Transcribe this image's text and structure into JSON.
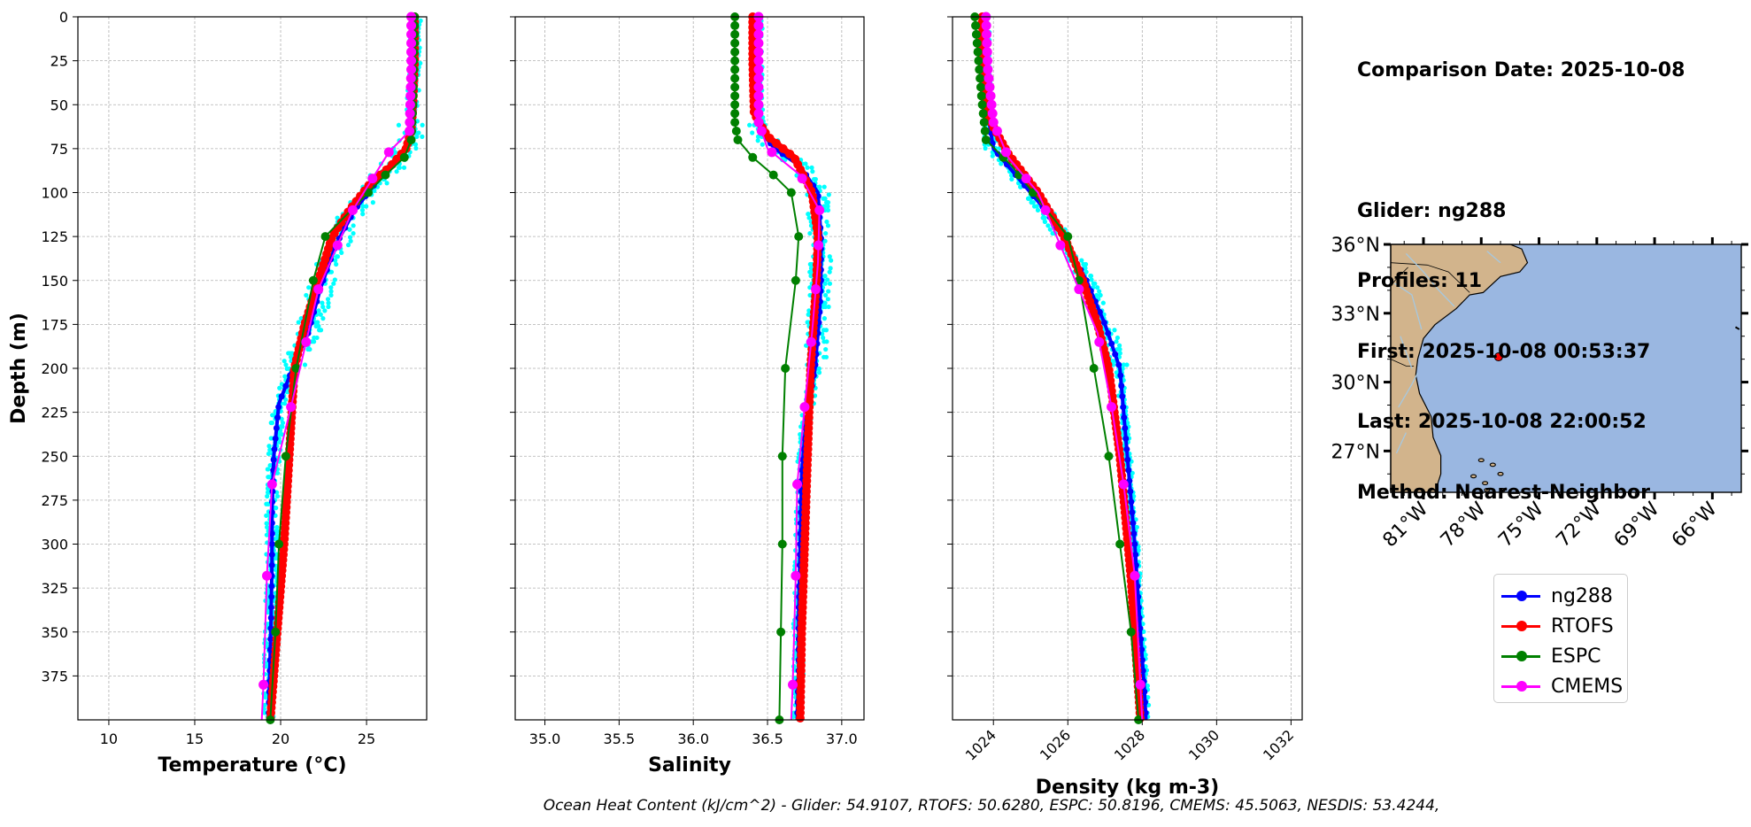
{
  "info": {
    "comparison_date": "Comparison Date: 2025-10-08",
    "glider": "Glider: ng288",
    "profiles": "Profiles: 11",
    "first": "First: 2025-10-08 00:53:37",
    "last": "Last: 2025-10-08 22:00:52",
    "method": "Method: Nearest-Neighbor"
  },
  "footer": "Ocean Heat Content (kJ/cm^2) - Glider: 54.9107,  RTOFS: 50.6280,  ESPC: 50.8196,  CMEMS: 45.5063,  NESDIS: 53.4244,",
  "legend": [
    {
      "label": "ng288",
      "color": "#0000ff"
    },
    {
      "label": "RTOFS",
      "color": "#ff0000"
    },
    {
      "label": "ESPC",
      "color": "#008000"
    },
    {
      "label": "CMEMS",
      "color": "#ff00ff"
    }
  ],
  "colors": {
    "glider_profiles": "#00ffff",
    "land": "#d2b48c",
    "ocean": "#9ab7e1"
  },
  "chart_data": [
    {
      "type": "line",
      "xlabel": "Temperature (°C)",
      "ylabel": "Depth (m)",
      "xlim": [
        8.2,
        28.5
      ],
      "ylim": [
        400,
        0
      ],
      "xticks": [
        10,
        15,
        20,
        25
      ],
      "yticks": [
        0,
        25,
        50,
        75,
        100,
        125,
        150,
        175,
        200,
        225,
        250,
        275,
        300,
        325,
        350,
        375
      ],
      "grid": true,
      "series": [
        {
          "name": "ng288",
          "color": "#0000ff",
          "x": [
            27.8,
            27.8,
            27.7,
            27.6,
            27.2,
            26.5,
            25.5,
            24.3,
            23.2,
            22.3,
            21.6,
            20.7,
            19.9,
            19.6,
            19.5,
            19.5,
            19.45,
            19.4,
            19.35,
            19.3
          ],
          "y": [
            0,
            25,
            50,
            65,
            75,
            85,
            95,
            110,
            130,
            155,
            180,
            200,
            220,
            250,
            280,
            310,
            340,
            360,
            380,
            400
          ]
        },
        {
          "name": "RTOFS",
          "color": "#ff0000",
          "x": [
            27.8,
            27.8,
            27.7,
            27.6,
            27.3,
            26.4,
            25.2,
            24.0,
            23.0,
            22.2,
            21.4,
            20.8,
            20.5,
            20.2,
            20.0,
            19.8,
            19.6,
            19.4
          ],
          "y": [
            0,
            25,
            50,
            65,
            75,
            85,
            95,
            110,
            125,
            150,
            175,
            200,
            250,
            300,
            325,
            350,
            375,
            400
          ]
        },
        {
          "name": "ESPC",
          "color": "#008000",
          "x": [
            27.8,
            27.7,
            27.6,
            27.2,
            26.1,
            22.6,
            21.9,
            20.9,
            20.3,
            19.9,
            19.7,
            19.4
          ],
          "y": [
            0,
            50,
            70,
            80,
            90,
            125,
            150,
            200,
            250,
            300,
            350,
            400
          ]
        },
        {
          "name": "CMEMS",
          "color": "#ff00ff",
          "x": [
            27.6,
            27.6,
            27.5,
            26.3,
            24.2,
            22.2,
            20.6,
            19.5,
            19.2,
            19.0,
            18.9
          ],
          "y": [
            0,
            30,
            65,
            77,
            110,
            155,
            222,
            266,
            318,
            380,
            400
          ]
        }
      ]
    },
    {
      "type": "line",
      "xlabel": "Salinity",
      "xlim": [
        34.8,
        37.15
      ],
      "ylim": [
        400,
        0
      ],
      "xticks": [
        35.0,
        35.5,
        36.0,
        36.5,
        37.0
      ],
      "grid": true,
      "series": [
        {
          "name": "ng288",
          "color": "#0000ff",
          "x": [
            36.43,
            36.43,
            36.43,
            36.45,
            36.55,
            36.72,
            36.84,
            36.86,
            36.86,
            36.85,
            36.82,
            36.76,
            36.73,
            36.72,
            36.71,
            36.71,
            36.7
          ],
          "y": [
            0,
            25,
            50,
            65,
            75,
            85,
            100,
            125,
            150,
            170,
            200,
            230,
            260,
            300,
            340,
            370,
            400
          ]
        },
        {
          "name": "RTOFS",
          "color": "#ff0000",
          "x": [
            36.4,
            36.4,
            36.41,
            36.5,
            36.68,
            36.8,
            36.84,
            36.83,
            36.81,
            36.79,
            36.77,
            36.75,
            36.73,
            36.72
          ],
          "y": [
            0,
            25,
            55,
            68,
            80,
            100,
            125,
            150,
            175,
            200,
            250,
            300,
            350,
            400
          ]
        },
        {
          "name": "ESPC",
          "color": "#008000",
          "x": [
            36.28,
            36.28,
            36.28,
            36.3,
            36.4,
            36.54,
            36.66,
            36.71,
            36.69,
            36.62,
            36.6,
            36.6,
            36.59,
            36.58
          ],
          "y": [
            0,
            25,
            60,
            70,
            80,
            90,
            100,
            125,
            150,
            200,
            250,
            300,
            350,
            400
          ]
        },
        {
          "name": "CMEMS",
          "color": "#ff00ff",
          "x": [
            36.44,
            36.44,
            36.44,
            36.5,
            36.72,
            36.85,
            36.84,
            36.8,
            36.75,
            36.7,
            36.69,
            36.67,
            36.66
          ],
          "y": [
            0,
            25,
            60,
            75,
            90,
            110,
            140,
            180,
            222,
            266,
            318,
            380,
            400
          ]
        }
      ]
    },
    {
      "type": "line",
      "xlabel": "Density (kg m-3)",
      "xlim": [
        1022.9,
        1032.3
      ],
      "ylim": [
        400,
        0
      ],
      "xticks": [
        1024,
        1026,
        1028,
        1030,
        1032
      ],
      "grid": true,
      "series": [
        {
          "name": "ng288",
          "color": "#0000ff",
          "x": [
            1023.8,
            1023.8,
            1023.85,
            1024.0,
            1024.6,
            1025.4,
            1026.0,
            1026.5,
            1027.0,
            1027.4,
            1027.6,
            1027.8,
            1027.95,
            1028.05,
            1028.1
          ],
          "y": [
            0,
            25,
            55,
            75,
            90,
            110,
            130,
            150,
            175,
            200,
            250,
            300,
            350,
            380,
            400
          ]
        },
        {
          "name": "RTOFS",
          "color": "#ff0000",
          "x": [
            1023.7,
            1023.7,
            1023.8,
            1024.4,
            1025.2,
            1025.9,
            1026.4,
            1026.8,
            1027.1,
            1027.4,
            1027.7,
            1027.95
          ],
          "y": [
            0,
            25,
            55,
            78,
            100,
            125,
            150,
            175,
            200,
            250,
            320,
            400
          ]
        },
        {
          "name": "ESPC",
          "color": "#008000",
          "x": [
            1023.5,
            1023.6,
            1023.7,
            1023.8,
            1024.5,
            1026.0,
            1026.3,
            1026.7,
            1027.1,
            1027.4,
            1027.7,
            1027.9
          ],
          "y": [
            0,
            25,
            50,
            70,
            85,
            125,
            150,
            200,
            250,
            300,
            350,
            400
          ]
        },
        {
          "name": "CMEMS",
          "color": "#ff00ff",
          "x": [
            1023.8,
            1023.85,
            1024.0,
            1024.4,
            1025.2,
            1026.0,
            1026.8,
            1027.2,
            1027.5,
            1027.8,
            1027.95,
            1028.0
          ],
          "y": [
            0,
            30,
            60,
            80,
            100,
            140,
            180,
            225,
            266,
            318,
            380,
            400
          ]
        }
      ]
    }
  ],
  "map": {
    "lat_labels": [
      "36°N",
      "33°N",
      "30°N",
      "27°N"
    ],
    "lon_labels": [
      "81°W",
      "78°W",
      "75°W",
      "72°W",
      "69°W",
      "66°W"
    ],
    "lat_ticks": [
      36,
      33,
      30,
      27
    ],
    "lon_ticks": [
      -81,
      -78,
      -75,
      -72,
      -69,
      -66
    ],
    "lon_range": [
      -82.7,
      -64.5
    ],
    "lat_range": [
      25.2,
      36.0
    ],
    "marker": {
      "lon": -77.1,
      "lat": 31.1,
      "color": "#ff0000"
    }
  }
}
